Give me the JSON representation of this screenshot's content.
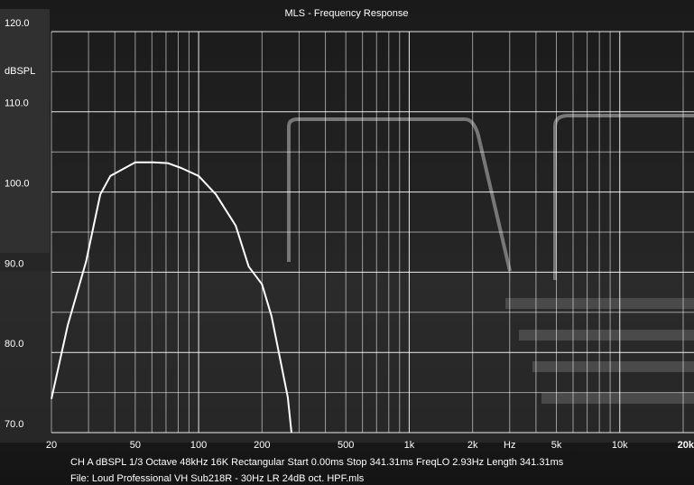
{
  "chart_data": {
    "type": "line",
    "title": "MLS - Frequency Response",
    "y_label": "dBSPL",
    "x": [
      20,
      23.9,
      29.2,
      34.1,
      38.1,
      50,
      61,
      71.3,
      82.7,
      100,
      120.9,
      150,
      173,
      200,
      222,
      245,
      265,
      276
    ],
    "values": [
      74.2,
      83.4,
      91.3,
      99.7,
      102,
      103.7,
      103.7,
      103.6,
      103,
      102,
      99.7,
      95.8,
      90.7,
      88.5,
      84.5,
      78.9,
      74.4,
      70
    ],
    "color": "#ffffff",
    "log_x": true,
    "xlim": [
      20,
      20000
    ],
    "ylim": [
      70,
      120
    ],
    "xticks": [
      20,
      50,
      100,
      200,
      500,
      {
        "value": 1000,
        "label": "1k"
      },
      {
        "value": 2000,
        "label": "2k"
      },
      {
        "value": 3000,
        "label": "Hz"
      },
      {
        "value": 5000,
        "label": "5k"
      },
      {
        "value": 10000,
        "label": "10k"
      },
      {
        "value": 20000,
        "label": "20k"
      }
    ],
    "yticks": [
      {
        "value": 70,
        "label": "70.0"
      },
      {
        "value": 80,
        "label": "80.0"
      },
      {
        "value": 90,
        "label": "90.0"
      },
      {
        "value": 100,
        "label": "100.0"
      },
      {
        "value": 110,
        "label": "110.0"
      },
      {
        "value": 120,
        "label": "120.0"
      }
    ],
    "xgrid": [
      20,
      30,
      40,
      50,
      60,
      70,
      80,
      90,
      100,
      200,
      300,
      400,
      500,
      600,
      700,
      800,
      900,
      1000,
      2000,
      3000,
      4000,
      5000,
      6000,
      7000,
      8000,
      9000,
      10000,
      20000
    ],
    "ygrid": [
      70,
      75,
      80,
      85,
      90,
      95,
      100,
      105,
      110,
      115,
      120
    ],
    "grid": true,
    "footer": "CH A   dBSPL   1/3 Octave   48kHz   16K   Rectangular   Start 0.00ms   Stop 341.31ms   FreqLO 2.93Hz   Length 341.31ms",
    "file": "File: Loud Professional VH Sub218R - 30Hz LR 24dB oct. HPF.mls"
  }
}
